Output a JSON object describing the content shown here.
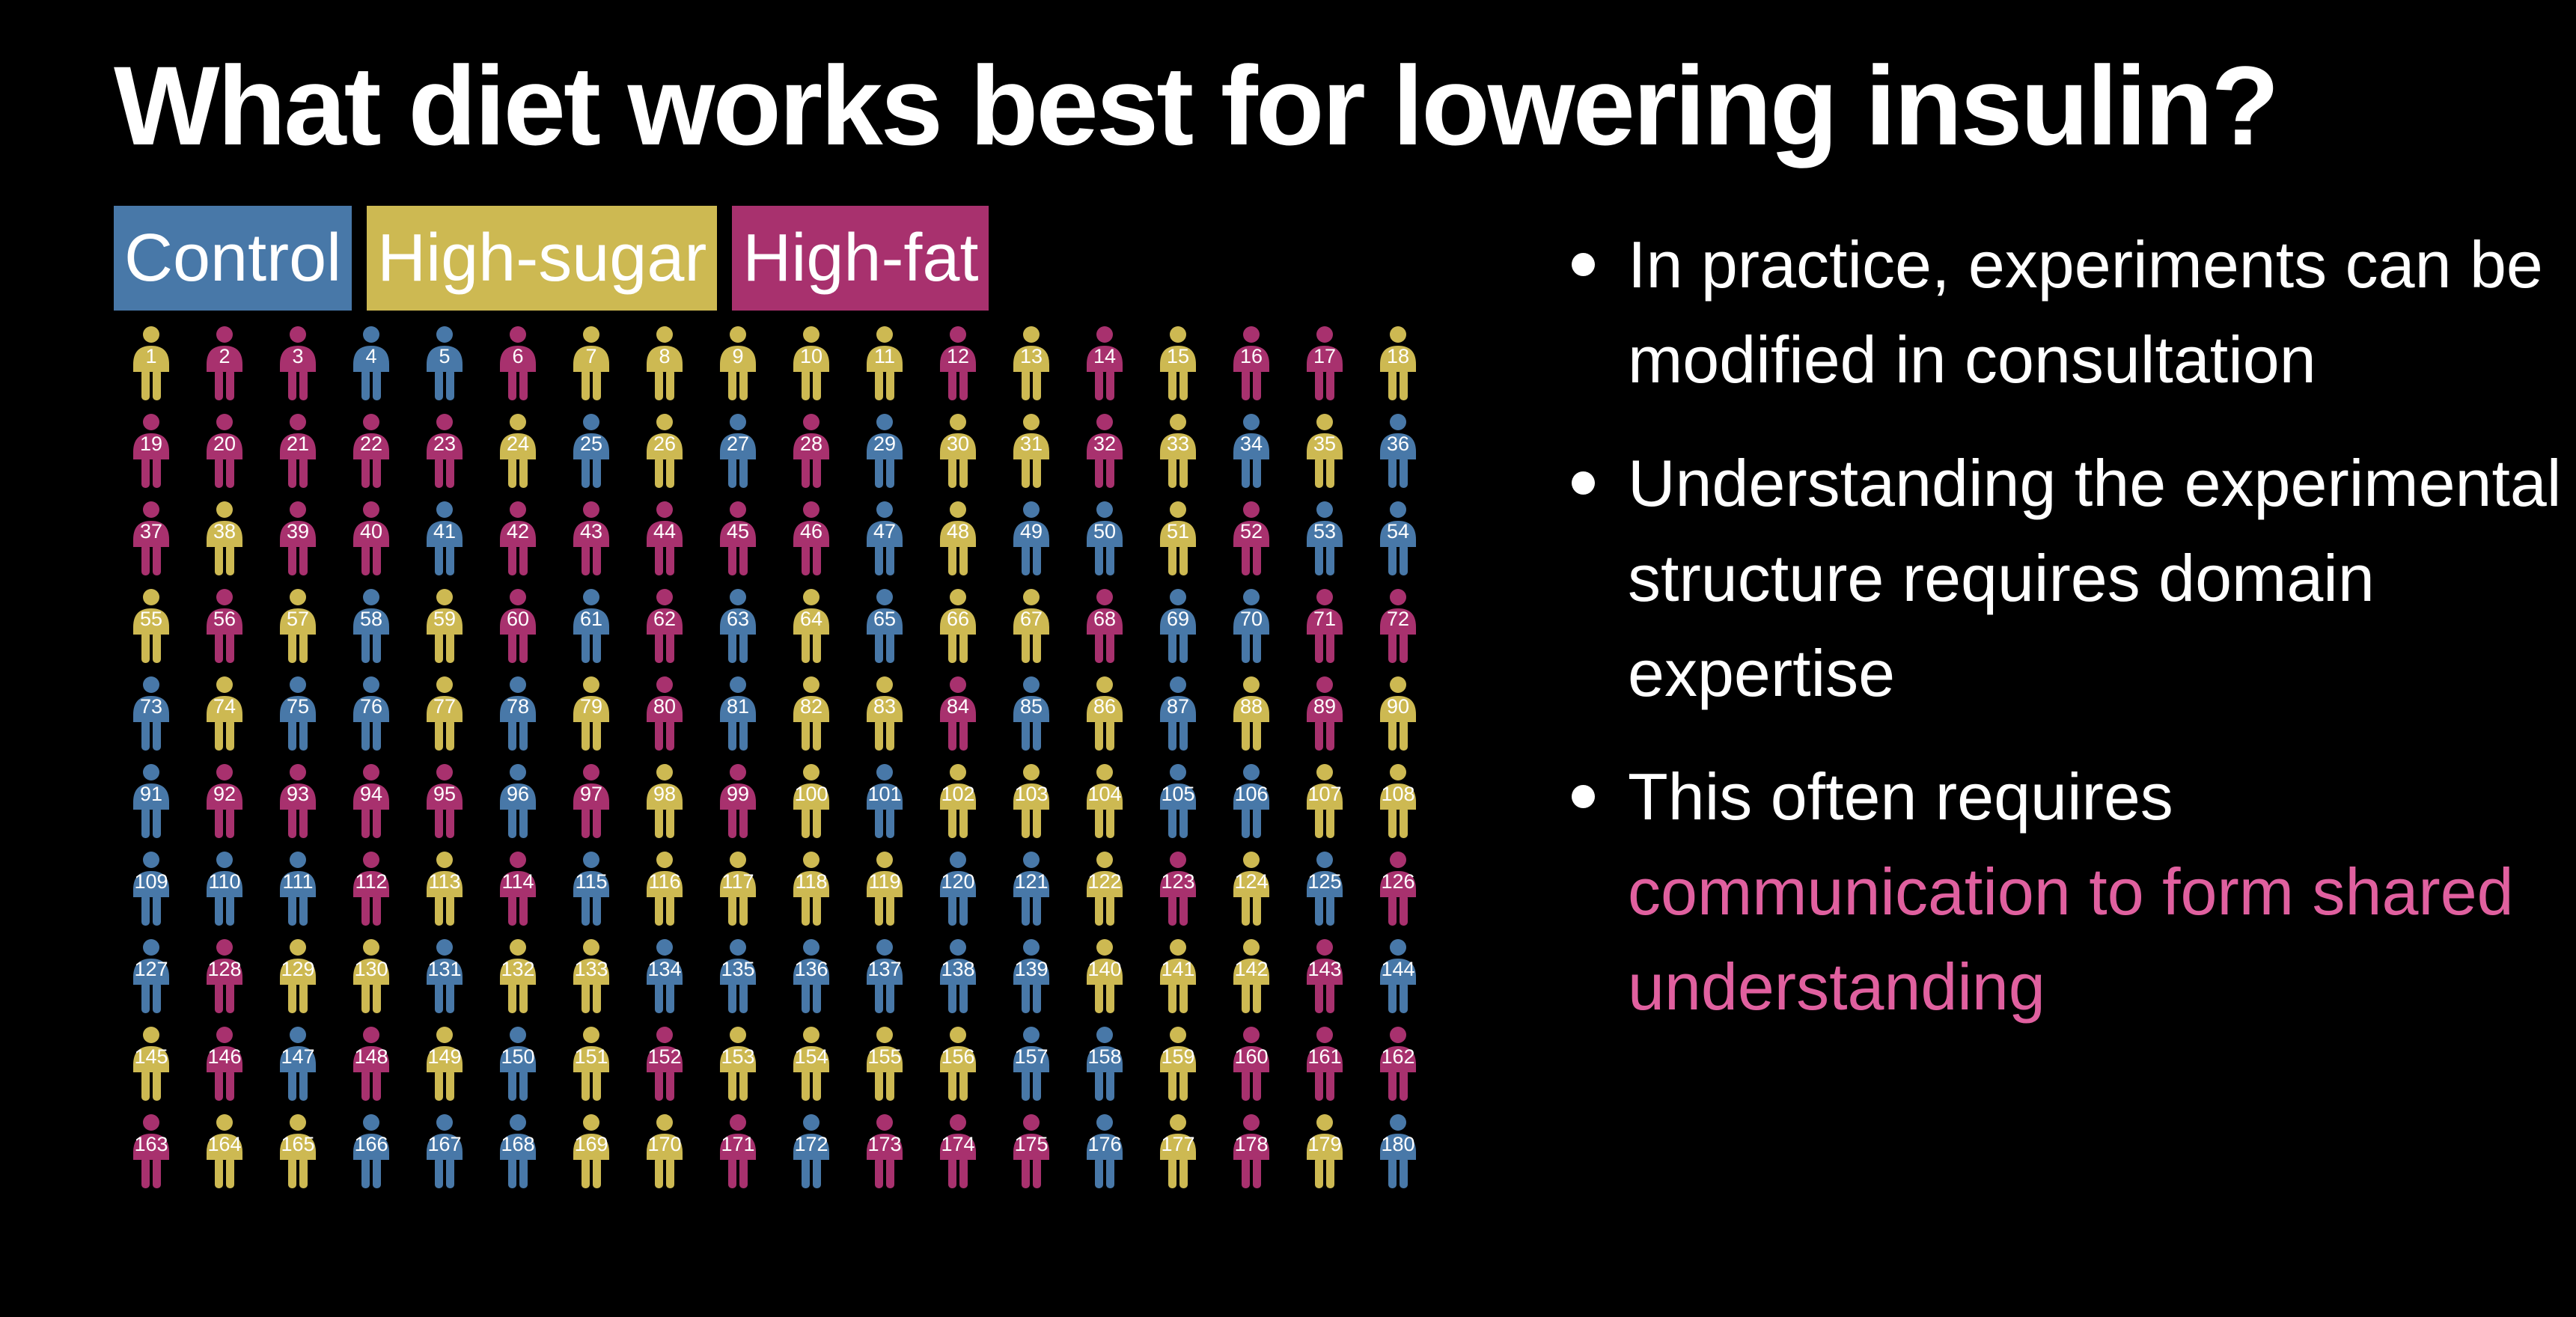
{
  "slide": {
    "title": "What diet works best for lowering insulin?"
  },
  "legend": [
    {
      "label": "Control",
      "color": "#4878A8"
    },
    {
      "label": "High-sugar",
      "color": "#CDB952"
    },
    {
      "label": "High-fat",
      "color": "#A8316E"
    }
  ],
  "bullets": [
    {
      "text": "In practice, experiments can be modified in consultation",
      "highlight": ""
    },
    {
      "text": "Understanding the experimental structure requires domain expertise",
      "highlight": ""
    },
    {
      "text": "This often requires",
      "highlight": "communication to form shared understanding"
    }
  ],
  "highlight_color": "#E0609F",
  "chart_data": {
    "type": "pictogram",
    "icon": "person-icon",
    "columns": 18,
    "rows": 10,
    "labels": [
      1,
      2,
      3,
      4,
      5,
      6,
      7,
      8,
      9,
      10,
      11,
      12,
      13,
      14,
      15,
      16,
      17,
      18,
      19,
      20,
      21,
      22,
      23,
      24,
      25,
      26,
      27,
      28,
      29,
      30,
      31,
      32,
      33,
      34,
      35,
      36,
      37,
      38,
      39,
      40,
      41,
      42,
      43,
      44,
      45,
      46,
      47,
      48,
      49,
      50,
      51,
      52,
      53,
      54,
      55,
      56,
      57,
      58,
      59,
      60,
      61,
      62,
      63,
      64,
      65,
      66,
      67,
      68,
      69,
      70,
      71,
      72,
      73,
      74,
      75,
      76,
      77,
      78,
      79,
      80,
      81,
      82,
      83,
      84,
      85,
      86,
      87,
      88,
      89,
      90,
      91,
      92,
      93,
      94,
      95,
      96,
      97,
      98,
      99,
      100,
      101,
      102,
      103,
      104,
      105,
      106,
      107,
      108,
      109,
      110,
      111,
      112,
      113,
      114,
      115,
      116,
      117,
      118,
      119,
      120,
      121,
      122,
      123,
      124,
      125,
      126,
      127,
      128,
      129,
      130,
      131,
      132,
      133,
      134,
      135,
      136,
      137,
      138,
      139,
      140,
      141,
      142,
      143,
      144,
      145,
      146,
      147,
      148,
      149,
      150,
      151,
      152,
      153,
      154,
      155,
      156,
      157,
      158,
      159,
      160,
      161,
      162,
      163,
      164,
      165,
      166,
      167,
      168,
      169,
      170,
      171,
      172,
      173,
      174,
      175,
      176,
      177,
      178,
      179,
      180
    ],
    "groups": [
      "S",
      "F",
      "F",
      "C",
      "C",
      "F",
      "S",
      "S",
      "S",
      "S",
      "S",
      "F",
      "S",
      "F",
      "S",
      "F",
      "F",
      "S",
      "F",
      "F",
      "F",
      "F",
      "F",
      "S",
      "C",
      "S",
      "C",
      "F",
      "C",
      "S",
      "S",
      "F",
      "S",
      "C",
      "S",
      "C",
      "F",
      "S",
      "F",
      "F",
      "C",
      "F",
      "F",
      "F",
      "F",
      "F",
      "C",
      "S",
      "C",
      "C",
      "S",
      "F",
      "C",
      "C",
      "S",
      "F",
      "S",
      "C",
      "S",
      "F",
      "C",
      "F",
      "C",
      "S",
      "C",
      "S",
      "S",
      "F",
      "C",
      "C",
      "F",
      "F",
      "C",
      "S",
      "C",
      "C",
      "S",
      "C",
      "S",
      "F",
      "C",
      "S",
      "S",
      "F",
      "C",
      "S",
      "C",
      "S",
      "F",
      "S",
      "C",
      "F",
      "F",
      "F",
      "F",
      "C",
      "F",
      "S",
      "F",
      "S",
      "C",
      "S",
      "S",
      "S",
      "C",
      "C",
      "S",
      "S",
      "C",
      "C",
      "C",
      "F",
      "S",
      "F",
      "C",
      "S",
      "S",
      "S",
      "S",
      "C",
      "C",
      "S",
      "F",
      "S",
      "C",
      "F",
      "C",
      "F",
      "S",
      "S",
      "C",
      "S",
      "S",
      "C",
      "C",
      "C",
      "C",
      "C",
      "C",
      "S",
      "S",
      "S",
      "F",
      "C",
      "S",
      "F",
      "C",
      "F",
      "S",
      "C",
      "S",
      "F",
      "S",
      "S",
      "S",
      "S",
      "C",
      "C",
      "S",
      "F",
      "F",
      "F",
      "F",
      "S",
      "S",
      "C",
      "C",
      "C",
      "S",
      "S",
      "F",
      "C",
      "F",
      "F",
      "F",
      "C",
      "S",
      "F",
      "S",
      "C"
    ]
  }
}
